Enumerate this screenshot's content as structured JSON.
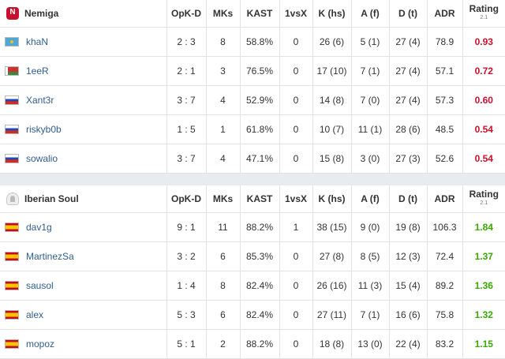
{
  "headers": {
    "opkd": "OpK-D",
    "mks": "MKs",
    "kast": "KAST",
    "onevx": "1vsX",
    "k": "K (hs)",
    "a": "A (f)",
    "d": "D (t)",
    "adr": "ADR",
    "rating": "Rating",
    "rating_sub": "2.1"
  },
  "colors": {
    "rating_negative": "#c8102e",
    "rating_positive": "#39a800",
    "player_link": "#2f5d8f"
  },
  "teams": [
    {
      "name": "Nemiga",
      "logo_icon": "nemiga-logo-icon",
      "players": [
        {
          "flag": "kazakhstan-flag-icon",
          "name": "khaN",
          "opkd": "2 : 3",
          "mks": "8",
          "kast": "58.8%",
          "onevx": "0",
          "k": "26 (6)",
          "a": "5 (1)",
          "d": "27 (4)",
          "adr": "78.9",
          "rating": "0.93"
        },
        {
          "flag": "belarus-flag-icon",
          "name": "1eeR",
          "opkd": "2 : 1",
          "mks": "3",
          "kast": "76.5%",
          "onevx": "0",
          "k": "17 (10)",
          "a": "7 (1)",
          "d": "27 (4)",
          "adr": "57.1",
          "rating": "0.72"
        },
        {
          "flag": "russia-flag-icon",
          "name": "Xant3r",
          "opkd": "3 : 7",
          "mks": "4",
          "kast": "52.9%",
          "onevx": "0",
          "k": "14 (8)",
          "a": "7 (0)",
          "d": "27 (4)",
          "adr": "57.3",
          "rating": "0.60"
        },
        {
          "flag": "russia-flag-icon",
          "name": "riskyb0b",
          "opkd": "1 : 5",
          "mks": "1",
          "kast": "61.8%",
          "onevx": "0",
          "k": "10 (7)",
          "a": "11 (1)",
          "d": "28 (6)",
          "adr": "48.5",
          "rating": "0.54"
        },
        {
          "flag": "russia-flag-icon",
          "name": "sowalio",
          "opkd": "3 : 7",
          "mks": "4",
          "kast": "47.1%",
          "onevx": "0",
          "k": "15 (8)",
          "a": "3 (0)",
          "d": "27 (3)",
          "adr": "52.6",
          "rating": "0.54"
        }
      ]
    },
    {
      "name": "Iberian Soul",
      "logo_icon": "iberian-soul-logo-icon",
      "players": [
        {
          "flag": "spain-flag-icon",
          "name": "dav1g",
          "opkd": "9 : 1",
          "mks": "11",
          "kast": "88.2%",
          "onevx": "1",
          "k": "38 (15)",
          "a": "9 (0)",
          "d": "19 (8)",
          "adr": "106.3",
          "rating": "1.84"
        },
        {
          "flag": "spain-flag-icon",
          "name": "MartinezSa",
          "opkd": "3 : 2",
          "mks": "6",
          "kast": "85.3%",
          "onevx": "0",
          "k": "27 (8)",
          "a": "8 (5)",
          "d": "12 (3)",
          "adr": "72.4",
          "rating": "1.37"
        },
        {
          "flag": "spain-flag-icon",
          "name": "sausol",
          "opkd": "1 : 4",
          "mks": "8",
          "kast": "82.4%",
          "onevx": "0",
          "k": "26 (16)",
          "a": "11 (3)",
          "d": "15 (4)",
          "adr": "89.2",
          "rating": "1.36"
        },
        {
          "flag": "spain-flag-icon",
          "name": "alex",
          "opkd": "5 : 3",
          "mks": "6",
          "kast": "82.4%",
          "onevx": "0",
          "k": "27 (11)",
          "a": "7 (1)",
          "d": "16 (6)",
          "adr": "75.8",
          "rating": "1.32"
        },
        {
          "flag": "spain-flag-icon",
          "name": "mopoz",
          "opkd": "5 : 1",
          "mks": "2",
          "kast": "88.2%",
          "onevx": "0",
          "k": "18 (8)",
          "a": "13 (0)",
          "d": "22 (4)",
          "adr": "83.2",
          "rating": "1.15"
        }
      ]
    }
  ]
}
